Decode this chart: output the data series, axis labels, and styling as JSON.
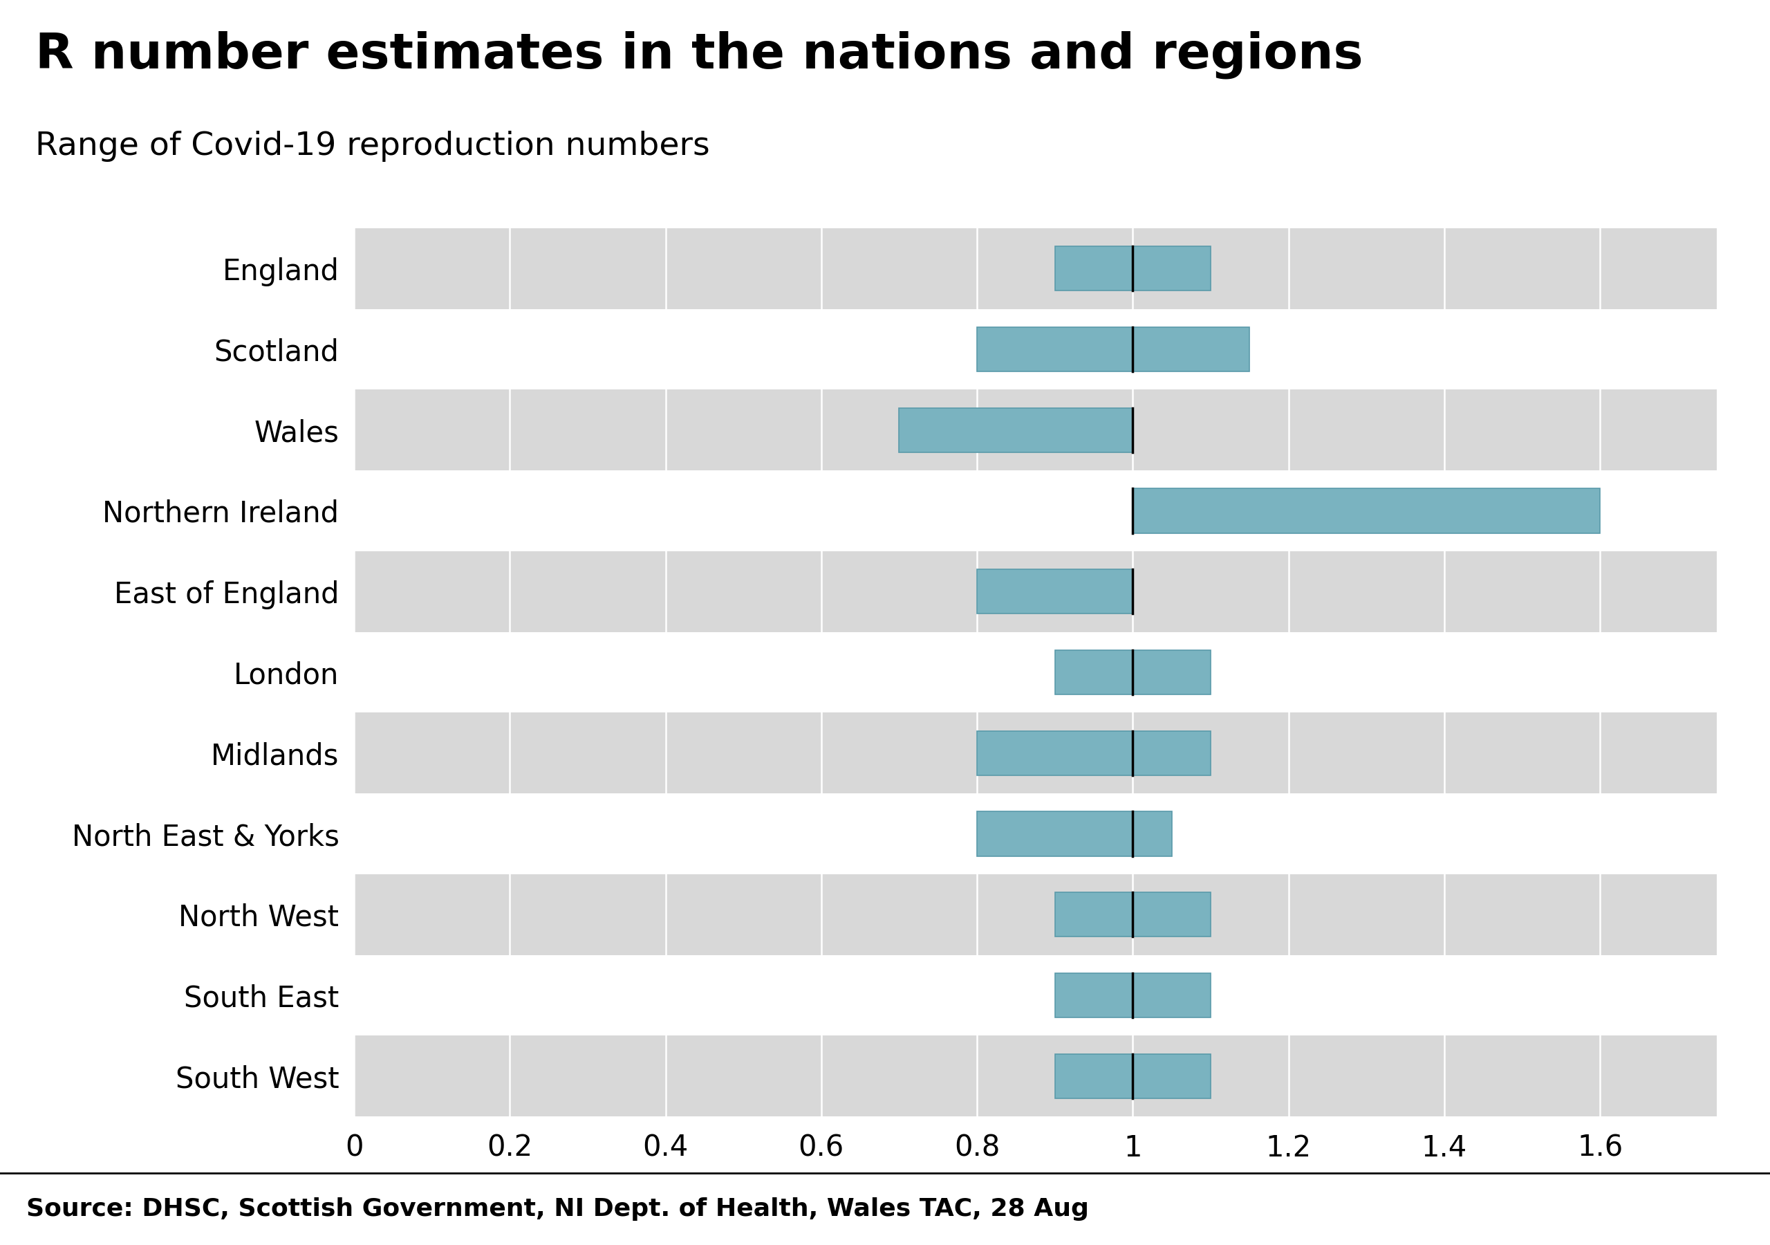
{
  "title": "R number estimates in the nations and regions",
  "subtitle": "Range of Covid-19 reproduction numbers",
  "source": "Source: DHSC, Scottish Government, NI Dept. of Health, Wales TAC, 28 Aug",
  "regions": [
    "England",
    "Scotland",
    "Wales",
    "Northern Ireland",
    "East of England",
    "London",
    "Midlands",
    "North East & Yorks",
    "North West",
    "South East",
    "South West"
  ],
  "low": [
    0.9,
    0.8,
    0.7,
    1.0,
    0.8,
    0.9,
    0.8,
    0.8,
    0.9,
    0.9,
    0.9
  ],
  "high": [
    1.1,
    1.15,
    1.0,
    1.6,
    1.0,
    1.1,
    1.1,
    1.05,
    1.1,
    1.1,
    1.1
  ],
  "median": [
    1.0,
    1.0,
    1.0,
    1.0,
    1.0,
    1.0,
    1.0,
    1.0,
    1.0,
    1.0,
    1.0
  ],
  "bar_color": "#7ab3c0",
  "bar_edge_color": "#5a9aaa",
  "median_line_color": "#000000",
  "background_color": "#ffffff",
  "stripe_color": "#d8d8d8",
  "grid_line_color": "#ffffff",
  "xlim_left": 0.0,
  "xlim_right": 1.75,
  "xticks": [
    0,
    0.2,
    0.4,
    0.6,
    0.8,
    1.0,
    1.2,
    1.4,
    1.6
  ],
  "xtick_labels": [
    "0",
    "0.2",
    "0.4",
    "0.6",
    "0.8",
    "1",
    "1.2",
    "1.4",
    "1.6"
  ],
  "title_fontsize": 52,
  "subtitle_fontsize": 34,
  "label_fontsize": 30,
  "tick_fontsize": 30,
  "source_fontsize": 26,
  "bar_height": 0.55,
  "footer_bg_color": "#cccccc",
  "bbc_bg_color": "#555555",
  "bbc_text_color": "#ffffff"
}
